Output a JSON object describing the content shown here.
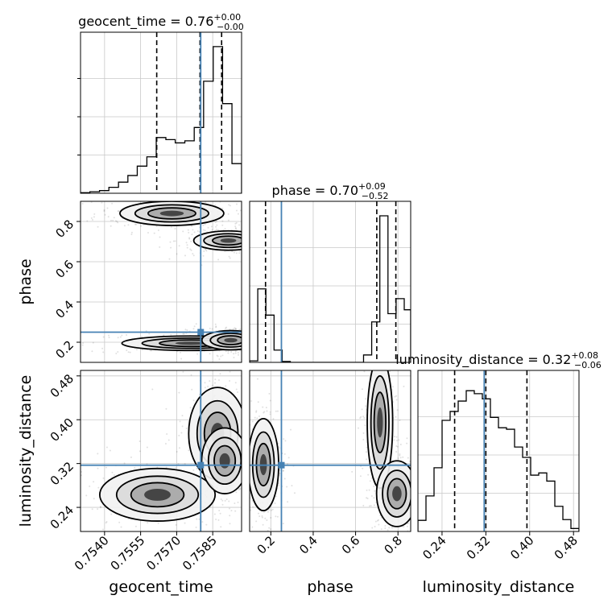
{
  "chart_data": {
    "type": "corner",
    "parameters": [
      "geocent_time",
      "phase",
      "luminosity_distance"
    ],
    "truths": {
      "geocent_time": 0.758,
      "phase": 0.25,
      "luminosity_distance": 0.317
    },
    "grid": true,
    "panels": [
      {
        "id": "hist-geocent_time",
        "kind": "histogram",
        "param": "geocent_time",
        "title": "geocent_time = 0.76",
        "title_sup": "+0.00",
        "title_sub": "−0.00",
        "xlim": [
          0.753,
          0.7597
        ],
        "bin_edges": [
          0.753,
          0.75339,
          0.75379,
          0.75418,
          0.75458,
          0.75497,
          0.75536,
          0.75576,
          0.75615,
          0.75655,
          0.75694,
          0.75734,
          0.75773,
          0.75812,
          0.75852,
          0.75891,
          0.7593,
          0.7597
        ],
        "counts": [
          0.004,
          0.01,
          0.018,
          0.04,
          0.075,
          0.12,
          0.183,
          0.246,
          0.376,
          0.362,
          0.34,
          0.354,
          0.444,
          0.756,
          0.99,
          0.605,
          0.2
        ],
        "quantiles": [
          0.75617,
          0.75797,
          0.75887
        ]
      },
      {
        "id": "hist-phase",
        "kind": "histogram",
        "param": "phase",
        "title": "phase = 0.70",
        "title_sup": "+0.09",
        "title_sub": "−0.52",
        "xlim": [
          0.1,
          0.86
        ],
        "bin_edges": [
          0.1,
          0.1384,
          0.1768,
          0.2152,
          0.2536,
          0.292,
          0.3304,
          0.3688,
          0.4072,
          0.4456,
          0.484,
          0.5224,
          0.5608,
          0.5992,
          0.6376,
          0.676,
          0.7144,
          0.7528,
          0.7912,
          0.8296,
          0.86
        ],
        "counts": [
          0.01,
          0.496,
          0.319,
          0.083,
          0.006,
          0,
          0,
          0,
          0,
          0,
          0,
          0,
          0,
          0,
          0.05,
          0.273,
          0.989,
          0.329,
          0.43,
          0.355
        ],
        "quantiles": [
          0.175,
          0.7,
          0.79
        ]
      },
      {
        "id": "hist-luminosity_distance",
        "kind": "histogram",
        "param": "luminosity_distance",
        "title": "luminosity_distance = 0.32",
        "title_sup": "+0.08",
        "title_sub": "−0.06",
        "xlim": [
          0.196,
          0.49
        ],
        "bin_edges": [
          0.196,
          0.2107,
          0.2254,
          0.2401,
          0.2548,
          0.2695,
          0.2842,
          0.2989,
          0.3136,
          0.3283,
          0.343,
          0.3577,
          0.3724,
          0.3871,
          0.4018,
          0.4165,
          0.4312,
          0.4459,
          0.4606,
          0.4753,
          0.49
        ],
        "counts": [
          0.075,
          0.24,
          0.43,
          0.75,
          0.81,
          0.88,
          0.95,
          0.93,
          0.895,
          0.77,
          0.7,
          0.69,
          0.57,
          0.5,
          0.38,
          0.395,
          0.34,
          0.17,
          0.08,
          0.02
        ],
        "quantiles": [
          0.263,
          0.32,
          0.395
        ]
      },
      {
        "id": "2d-phase-vs-geocent_time",
        "kind": "contour",
        "x": "geocent_time",
        "y": "phase",
        "xlim": [
          0.753,
          0.7597
        ],
        "ylim": [
          0.1,
          0.9
        ],
        "modes": [
          {
            "x0": 0.7568,
            "y0": 0.84,
            "rx": 0.0009,
            "ry": 0.025,
            "dx": 0.0,
            "dy": 0.0
          },
          {
            "x0": 0.75915,
            "y0": 0.705,
            "rx": 0.0006,
            "ry": 0.02,
            "dx": 0.0,
            "dy": 0.0
          },
          {
            "x0": 0.7576,
            "y0": 0.195,
            "rx": 0.0012,
            "ry": 0.015,
            "dx": 0.0,
            "dy": 0.0
          },
          {
            "x0": 0.75925,
            "y0": 0.21,
            "rx": 0.0005,
            "ry": 0.02,
            "dx": 0.0,
            "dy": 0.0
          }
        ]
      },
      {
        "id": "2d-luminosity_distance-vs-geocent_time",
        "kind": "contour",
        "x": "geocent_time",
        "y": "luminosity_distance",
        "xlim": [
          0.753,
          0.7597
        ],
        "ylim": [
          0.196,
          0.49
        ],
        "modes": [
          {
            "x0": 0.7562,
            "y0": 0.263,
            "rx": 0.001,
            "ry": 0.02
          },
          {
            "x0": 0.7587,
            "y0": 0.375,
            "rx": 0.0005,
            "ry": 0.035
          },
          {
            "x0": 0.759,
            "y0": 0.325,
            "rx": 0.0004,
            "ry": 0.025
          }
        ]
      },
      {
        "id": "2d-luminosity_distance-vs-phase",
        "kind": "contour",
        "x": "phase",
        "y": "luminosity_distance",
        "xlim": [
          0.1,
          0.86
        ],
        "ylim": [
          0.196,
          0.49
        ],
        "modes": [
          {
            "x0": 0.165,
            "y0": 0.318,
            "rx": 0.03,
            "ry": 0.035
          },
          {
            "x0": 0.715,
            "y0": 0.395,
            "rx": 0.025,
            "ry": 0.05
          },
          {
            "x0": 0.795,
            "y0": 0.265,
            "rx": 0.04,
            "ry": 0.025
          }
        ]
      }
    ],
    "axes": {
      "geocent_time": {
        "label": "geocent_time",
        "ticks": [
          0.754,
          0.7555,
          0.757,
          0.7585
        ],
        "tick_labels": [
          "0.7540",
          "0.7555",
          "0.7570",
          "0.7585"
        ]
      },
      "phase": {
        "label": "phase",
        "ticks": [
          0.2,
          0.4,
          0.6,
          0.8
        ],
        "tick_labels": [
          "0.2",
          "0.4",
          "0.6",
          "0.8"
        ]
      },
      "luminosity_distance": {
        "label": "luminosity_distance",
        "ticks": [
          0.24,
          0.32,
          0.4,
          0.48
        ],
        "tick_labels": [
          "0.24",
          "0.32",
          "0.40",
          "0.48"
        ]
      }
    },
    "colors": {
      "truth": "#4682b4",
      "line": "#000000",
      "grid": "#c8c8c8"
    }
  }
}
